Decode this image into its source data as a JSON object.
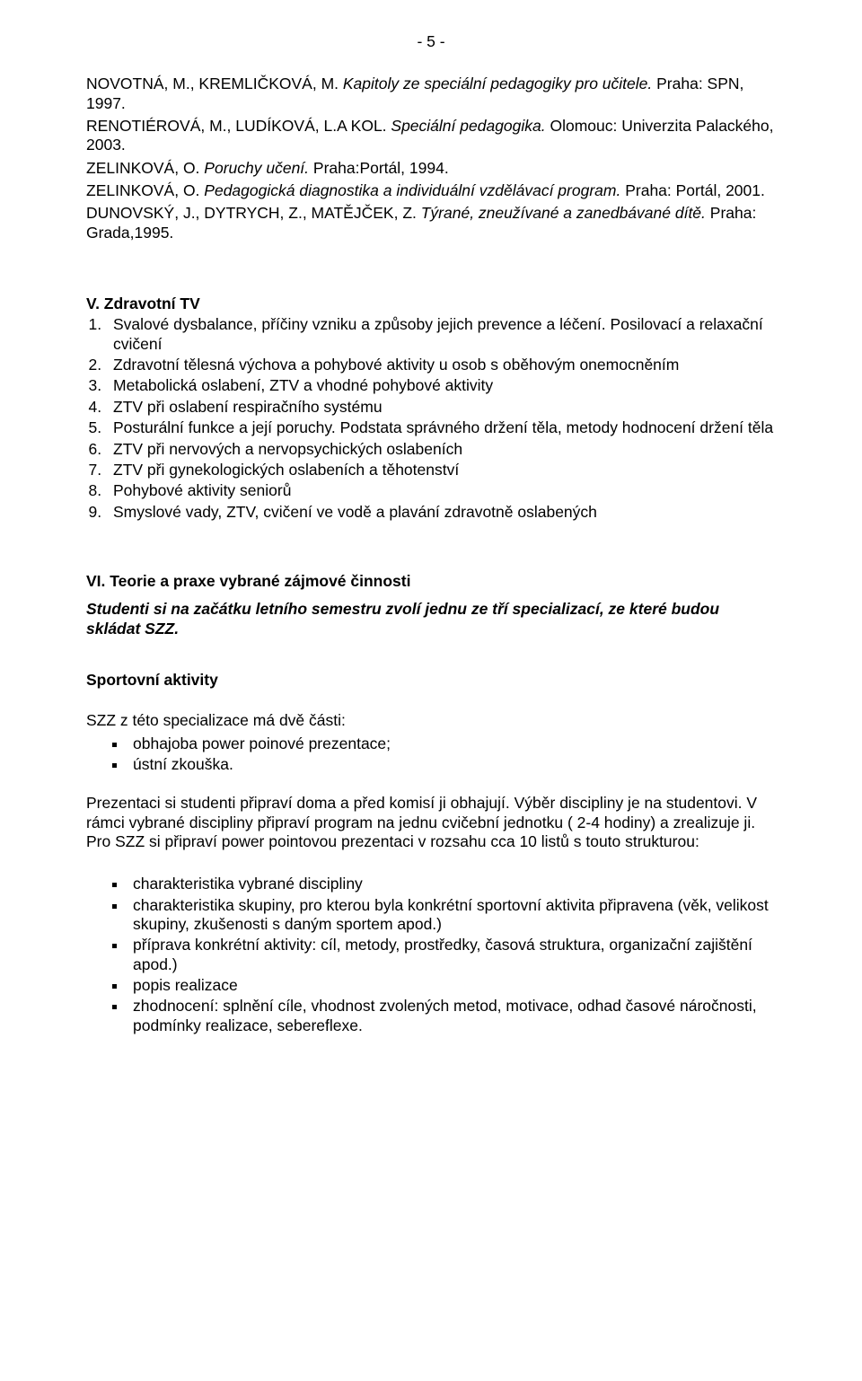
{
  "page_number": "- 5 -",
  "refs": {
    "r1a": "NOVOTNÁ, M., KREMLIČKOVÁ, M. ",
    "r1b": "Kapitoly ze speciální pedagogiky pro učitele.",
    "r1c": " Praha: SPN, 1997.",
    "r2a": "RENOTIÉROVÁ, M., LUDÍKOVÁ, L.A KOL. ",
    "r2b": "Speciální pedagogika.",
    "r2c": " Olomouc: Univerzita Palackého, 2003.",
    "r3a": "ZELINKOVÁ, O. ",
    "r3b": "Poruchy učení.",
    "r3c": " Praha:Portál, 1994.",
    "r4a": "ZELINKOVÁ, O. ",
    "r4b": "Pedagogická diagnostika a individuální vzdělávací program.",
    "r4c": " Praha: Portál, 2001.",
    "r5a": "DUNOVSKÝ, J., DYTRYCH, Z., MATĚJČEK, Z. ",
    "r5b": "Týrané, zneužívané a zanedbávané dítě.",
    "r5c": " Praha: Grada,1995."
  },
  "sectionV": {
    "heading": "V.  Zdravotní TV",
    "items": [
      "Svalové dysbalance, příčiny vzniku a způsoby jejich prevence a léčení. Posilovací a relaxační cvičení",
      "Zdravotní tělesná výchova a pohybové aktivity u osob s oběhovým onemocněním",
      "Metabolická oslabení, ZTV a vhodné pohybové aktivity",
      "ZTV při oslabení respiračního systému",
      "Posturální funkce a její poruchy. Podstata správného držení těla, metody hodnocení držení těla",
      "ZTV při nervových a nervopsychických oslabeních",
      "ZTV při gynekologických oslabeních a těhotenství",
      "Pohybové aktivity seniorů",
      "Smyslové vady, ZTV, cvičení ve vodě a plavání zdravotně oslabených"
    ]
  },
  "sectionVI": {
    "heading": "VI. Teorie a praxe vybrané zájmové činnosti",
    "intro": "Studenti si  na začátku  letního semestru  zvolí  jednu ze tří specializací, ze které budou skládat SZZ.",
    "sub_heading": "Sportovní aktivity",
    "p1": "SZZ z této specializace má dvě části:",
    "parts": [
      "obhajoba  power poinové prezentace;",
      "ústní zkouška."
    ],
    "p2": "Prezentaci si studenti připraví doma a před komisí ji obhajují. Výběr discipliny je na studentovi. V rámci vybrané discipliny připraví  program na jednu  cvičební jednotku ( 2-4 hodiny) a zrealizuje ji. Pro SZZ si připraví power pointovou prezentaci v rozsahu cca 10 listů s touto strukturou:",
    "structure": [
      "charakteristika vybrané discipliny",
      "charakteristika  skupiny, pro kterou byla konkrétní sportovní aktivita připravena (věk, velikost skupiny,  zkušenosti s daným sportem apod.)",
      "příprava konkrétní aktivity: cíl, metody,  prostředky, časová struktura, organizační zajištění apod.)",
      "popis  realizace",
      "zhodnocení: splnění cíle, vhodnost  zvolených metod, motivace,  odhad časové náročnosti, podmínky realizace, sebereflexe."
    ]
  }
}
